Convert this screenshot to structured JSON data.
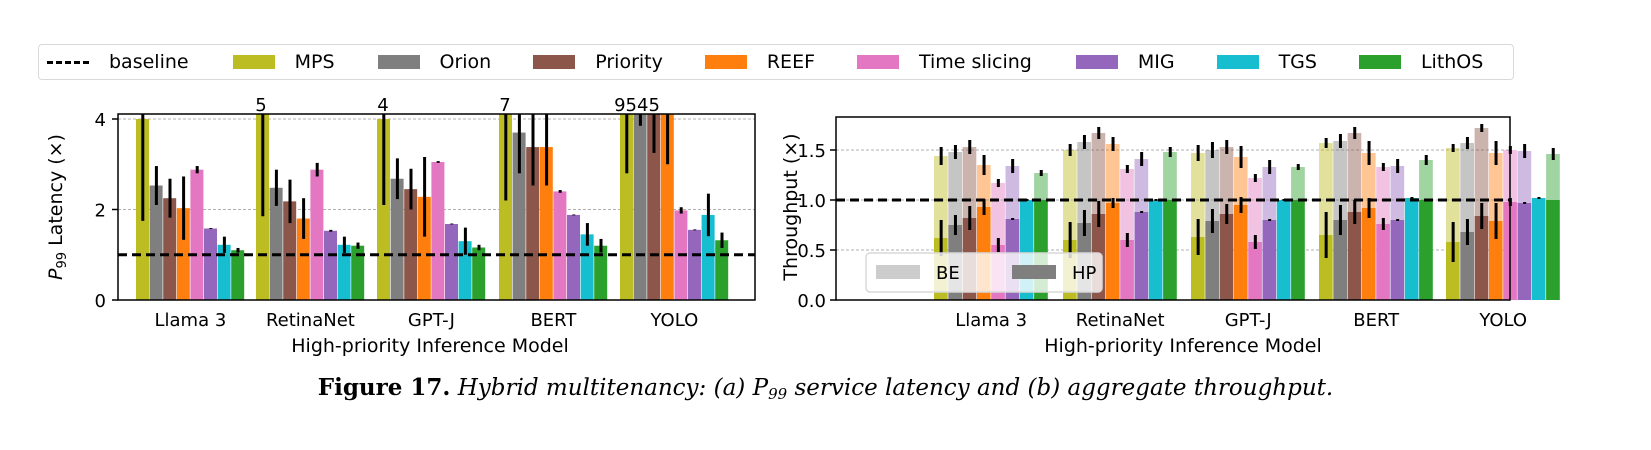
{
  "legend": {
    "items": [
      {
        "label": "baseline",
        "type": "dash",
        "color": "#000000"
      },
      {
        "label": "MPS",
        "type": "box",
        "color": "#bcbd22"
      },
      {
        "label": "Orion",
        "type": "box",
        "color": "#7f7f7f"
      },
      {
        "label": "Priority",
        "type": "box",
        "color": "#8c564b"
      },
      {
        "label": "REEF",
        "type": "box",
        "color": "#ff7f0e"
      },
      {
        "label": "Time slicing",
        "type": "box",
        "color": "#e377c2"
      },
      {
        "label": "MIG",
        "type": "box",
        "color": "#9467bd"
      },
      {
        "label": "TGS",
        "type": "box",
        "color": "#17becf"
      },
      {
        "label": "LithOS",
        "type": "box",
        "color": "#2ca02c"
      }
    ]
  },
  "caption": {
    "label": "Figure 17.",
    "text_a": "Hybrid multitenancy: (a) P",
    "subscript": "99",
    "text_b": " service latency and (b) aggregate throughput."
  },
  "chart_data": [
    {
      "type": "bar",
      "title": "(a) P99 service latency",
      "xlabel": "High-priority Inference Model",
      "ylabel": "P99 Latency (×)",
      "ylabel_main": "P",
      "ylabel_sub": "99",
      "ylabel_rest": " Latency (×)",
      "ylim": [
        0,
        4.2
      ],
      "yticks": [
        0,
        2,
        4
      ],
      "grid": "y-dashed",
      "baseline": 1.0,
      "categories": [
        "Llama 3",
        "RetinaNet",
        "GPT-J",
        "BERT",
        "YOLO"
      ],
      "series": [
        {
          "name": "MPS",
          "values": [
            4.0,
            5,
            4,
            7,
            95
          ],
          "err": [
            2.25,
            2.35,
            1.9,
            2.0,
            1.4
          ]
        },
        {
          "name": "Orion",
          "values": [
            2.53,
            2.48,
            2.68,
            3.7,
            95
          ],
          "err": [
            0.43,
            0.4,
            0.45,
            0.9,
            0.35
          ]
        },
        {
          "name": "Priority",
          "values": [
            2.25,
            2.18,
            2.45,
            3.38,
            45
          ],
          "err": [
            0.43,
            0.48,
            0.45,
            0.85,
            0.95
          ]
        },
        {
          "name": "REEF",
          "values": [
            2.03,
            1.8,
            2.28,
            3.38,
            45
          ],
          "err": [
            0.7,
            0.45,
            0.88,
            0.85,
            1.2
          ]
        },
        {
          "name": "Time slicing",
          "values": [
            2.88,
            2.88,
            3.05,
            2.4,
            1.98
          ],
          "err": [
            0.08,
            0.15,
            0.02,
            0.03,
            0.07
          ]
        },
        {
          "name": "MIG",
          "values": [
            1.58,
            1.53,
            1.68,
            1.88,
            1.55
          ],
          "err": [
            0.01,
            0.02,
            0.01,
            0.01,
            0.01
          ]
        },
        {
          "name": "TGS",
          "values": [
            1.22,
            1.22,
            1.3,
            1.45,
            1.88
          ],
          "err": [
            0.18,
            0.18,
            0.3,
            0.25,
            0.47
          ]
        },
        {
          "name": "LithOS",
          "values": [
            1.1,
            1.2,
            1.16,
            1.2,
            1.32
          ],
          "err": [
            0.05,
            0.07,
            0.06,
            0.15,
            0.17
          ]
        }
      ],
      "clipped_labels": [
        {
          "category": "RetinaNet",
          "text": "5"
        },
        {
          "category": "GPT-J",
          "text": "4"
        },
        {
          "category": "BERT",
          "text": "7"
        },
        {
          "category": "YOLO",
          "text": "9545"
        }
      ]
    },
    {
      "type": "bar",
      "title": "(b) aggregate throughput",
      "xlabel": "High-priority Inference Model",
      "ylabel": "Throughput (×)",
      "ylim": [
        0,
        1.82
      ],
      "yticks": [
        "0.0",
        "0.5",
        "1.0",
        "1.5"
      ],
      "grid": "y-dashed",
      "baseline": 1.0,
      "stacked": true,
      "stack_legend": [
        {
          "label": "BE",
          "color": "#cccccc"
        },
        {
          "label": "HP",
          "color": "#7f7f7f"
        }
      ],
      "categories": [
        "Llama 3",
        "RetinaNet",
        "GPT-J",
        "BERT",
        "YOLO"
      ],
      "series": [
        {
          "name": "MPS",
          "hp": [
            0.62,
            0.6,
            0.63,
            0.65,
            0.58
          ],
          "total": [
            1.44,
            1.5,
            1.47,
            1.57,
            1.52
          ],
          "hp_err": [
            0.18,
            0.18,
            0.18,
            0.23,
            0.2
          ],
          "total_err": [
            0.09,
            0.06,
            0.08,
            0.05,
            0.04
          ]
        },
        {
          "name": "Orion",
          "hp": [
            0.75,
            0.77,
            0.79,
            0.8,
            0.68
          ],
          "total": [
            1.48,
            1.58,
            1.5,
            1.59,
            1.57
          ],
          "hp_err": [
            0.1,
            0.13,
            0.12,
            0.15,
            0.13
          ],
          "total_err": [
            0.07,
            0.07,
            0.08,
            0.07,
            0.06
          ]
        },
        {
          "name": "Priority",
          "hp": [
            0.82,
            0.86,
            0.86,
            0.88,
            0.84
          ],
          "total": [
            1.53,
            1.67,
            1.53,
            1.67,
            1.72
          ],
          "hp_err": [
            0.12,
            0.13,
            0.1,
            0.12,
            0.13
          ],
          "total_err": [
            0.07,
            0.06,
            0.07,
            0.06,
            0.04
          ]
        },
        {
          "name": "REEF",
          "hp": [
            0.93,
            0.97,
            0.95,
            0.92,
            0.79
          ],
          "total": [
            1.35,
            1.56,
            1.43,
            1.47,
            1.47
          ],
          "hp_err": [
            0.08,
            0.05,
            0.08,
            0.1,
            0.18
          ],
          "total_err": [
            0.1,
            0.07,
            0.11,
            0.12,
            0.12
          ]
        },
        {
          "name": "Time slicing",
          "hp": [
            0.55,
            0.6,
            0.58,
            0.76,
            0.98
          ],
          "total": [
            1.17,
            1.31,
            1.22,
            1.33,
            1.5
          ],
          "hp_err": [
            0.07,
            0.07,
            0.07,
            0.06,
            0.04
          ],
          "total_err": [
            0.04,
            0.04,
            0.04,
            0.04,
            0.04
          ]
        },
        {
          "name": "MIG",
          "hp": [
            0.81,
            0.88,
            0.8,
            0.8,
            0.97
          ],
          "total": [
            1.34,
            1.41,
            1.33,
            1.34,
            1.49
          ],
          "hp_err": [
            0.01,
            0.01,
            0.01,
            0.01,
            0.01
          ],
          "total_err": [
            0.07,
            0.07,
            0.07,
            0.07,
            0.07
          ]
        },
        {
          "name": "TGS",
          "hp": [
            1.0,
            1.0,
            1.0,
            1.02,
            1.02
          ],
          "total": [
            1.0,
            1.0,
            1.0,
            1.02,
            1.02
          ],
          "hp_err": [
            0.01,
            0.01,
            0.01,
            0.01,
            0.01
          ],
          "total_err": [
            0.0,
            0.0,
            0.0,
            0.0,
            0.0
          ]
        },
        {
          "name": "LithOS",
          "hp": [
            1.0,
            1.0,
            1.0,
            1.0,
            1.0
          ],
          "total": [
            1.27,
            1.48,
            1.33,
            1.4,
            1.46
          ],
          "hp_err": [
            0.0,
            0.0,
            0.0,
            0.0,
            0.0
          ],
          "total_err": [
            0.03,
            0.05,
            0.03,
            0.05,
            0.06
          ]
        }
      ]
    }
  ]
}
